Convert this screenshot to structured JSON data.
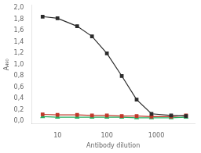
{
  "chart_data": {
    "type": "line",
    "x": [
      5,
      10,
      25,
      50,
      100,
      200,
      400,
      800,
      2000,
      4000
    ],
    "xlabel": "Antibody dilution",
    "ylabel": "A₄₉₀",
    "series": [
      {
        "color": "#2b2b2b",
        "marker": "square",
        "values": [
          1.85,
          1.82,
          1.68,
          1.5,
          1.2,
          0.8,
          0.38,
          0.13,
          0.1,
          0.09
        ]
      },
      {
        "color": "#c0392b",
        "marker": "square",
        "values": [
          0.12,
          0.11,
          0.11,
          0.1,
          0.1,
          0.09,
          0.09,
          0.08,
          0.08,
          0.1
        ]
      },
      {
        "color": "#27ae60",
        "marker": "triangle",
        "values": [
          0.08,
          0.07,
          0.07,
          0.07,
          0.07,
          0.07,
          0.06,
          0.06,
          0.06,
          0.07
        ]
      }
    ],
    "log": "x",
    "xlim": [
      3,
      6000
    ],
    "xticks": [
      10,
      100,
      1000
    ],
    "ylim": [
      -0.05,
      2.05
    ],
    "yticks": [
      {
        "value": 0.0,
        "label": "0,0"
      },
      {
        "value": 0.2,
        "label": "0,2"
      },
      {
        "value": 0.4,
        "label": "0,4"
      },
      {
        "value": 0.6,
        "label": "0,6"
      },
      {
        "value": 0.8,
        "label": "0,8"
      },
      {
        "value": 1.0,
        "label": "1,0"
      },
      {
        "value": 1.2,
        "label": "1,2"
      },
      {
        "value": 1.4,
        "label": "1,4"
      },
      {
        "value": 1.6,
        "label": "1,6"
      },
      {
        "value": 1.8,
        "label": "1,8"
      },
      {
        "value": 2.0,
        "label": "2,0"
      }
    ],
    "grid": false
  }
}
